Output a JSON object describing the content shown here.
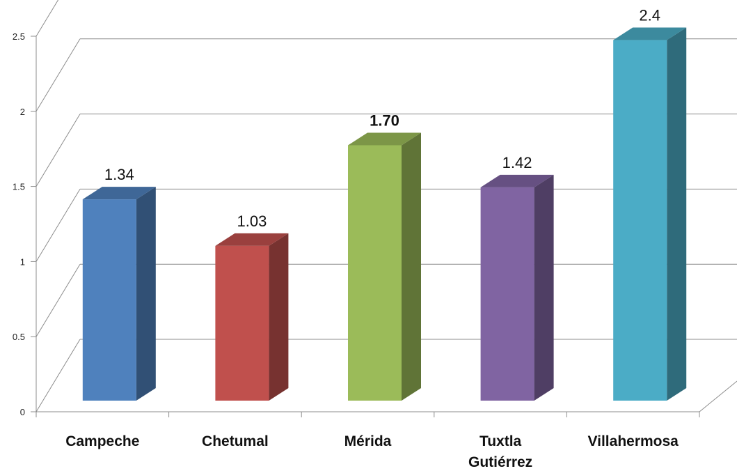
{
  "chart_data": {
    "type": "bar",
    "three_d": true,
    "categories": [
      "Campeche",
      "Chetumal",
      "Mérida",
      "Tuxtla Gutiérrez",
      "Villahermosa"
    ],
    "category_lines": [
      [
        "Campeche"
      ],
      [
        "Chetumal"
      ],
      [
        "Mérida"
      ],
      [
        "Tuxtla",
        "Gutiérrez"
      ],
      [
        "Villahermosa"
      ]
    ],
    "values": [
      1.34,
      1.03,
      1.7,
      1.42,
      2.4
    ],
    "data_labels": [
      "1.34",
      "1.03",
      "1.70",
      "1.42",
      "2.4"
    ],
    "bold_labels": [
      false,
      false,
      true,
      false,
      false
    ],
    "colors": [
      "#4F81BD",
      "#C0504D",
      "#9BBB59",
      "#8064A2",
      "#4BACC6"
    ],
    "ylim": [
      0,
      2.5
    ],
    "yticks": [
      0,
      0.5,
      1,
      1.5,
      2,
      2.5
    ],
    "ytick_labels": [
      "0",
      "0.5",
      "1",
      "1.5",
      "2",
      "2.5"
    ],
    "grid": true,
    "legend": false,
    "title": "",
    "xlabel": "",
    "ylabel": ""
  }
}
